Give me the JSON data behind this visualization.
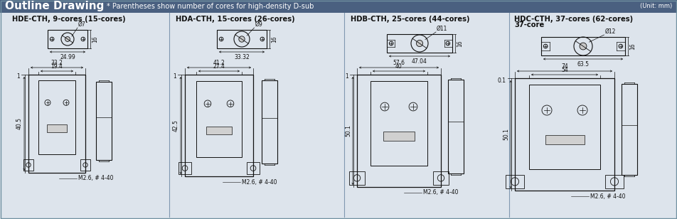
{
  "title": "Outline Drawing",
  "subtitle": "* Parentheses show number of cores for high-density D-sub",
  "unit": "(Unit: mm)",
  "bg_color": "#dde4ec",
  "header_bg": "#b8c8d8",
  "line_color": "#111111",
  "dim_color": "#111111",
  "text_color": "#111111",
  "connectors": [
    {
      "label": "HDE-CTH, 9-cores (15-cores)",
      "diam_label": "Ø7",
      "top_w_label": "24.99",
      "top_h_label": "16",
      "fw_outer": "33.2",
      "fw_inner": "19.4",
      "fh_label": "40.5",
      "fh_top": "1",
      "screw": "M2.6, # 4-40"
    },
    {
      "label": "HDA-CTH, 15-cores (26-cores)",
      "diam_label": "Ø9",
      "top_w_label": "33.32",
      "top_h_label": "16",
      "fw_outer": "41.2",
      "fw_inner": "27.4",
      "fh_label": "42.5",
      "fh_top": "1",
      "screw": "M2.6, # 4-40"
    },
    {
      "label": "HDB-CTH, 25-cores (44-cores)",
      "diam_label": "Ø11",
      "top_w_label": "47.04",
      "top_h_label": "16",
      "fw_outer": "57.6",
      "fw_inner": "40",
      "fh_label": "50.1",
      "fh_top": "1",
      "screw": "M2.6, # 4-40"
    },
    {
      "label": "HDC-CTH, 37-cores (62-cores)",
      "label2": "37-core",
      "diam_label": "Ø12",
      "top_w_label": "63.5",
      "top_h_label": "16",
      "fw_outer": "74",
      "fw_inner": "54",
      "fh_label": "50.1",
      "fh_top": "0.1",
      "screw": "M2.6, # 4-40"
    }
  ]
}
